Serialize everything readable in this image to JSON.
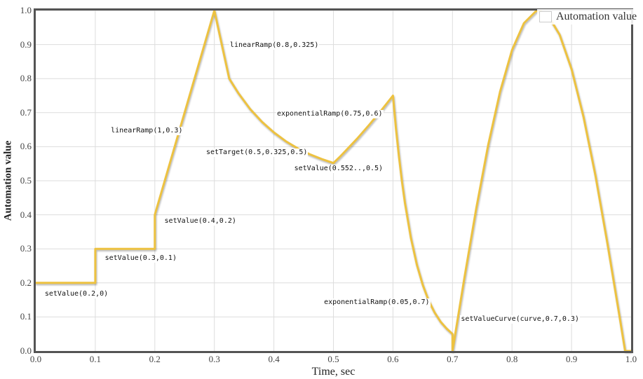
{
  "chart_data": {
    "type": "line",
    "title": "",
    "xlabel": "Time, sec",
    "ylabel": "Automation value",
    "xlim": [
      0,
      1
    ],
    "ylim": [
      0,
      1
    ],
    "grid": true,
    "x_ticks": [
      "0.0",
      "0.1",
      "0.2",
      "0.3",
      "0.4",
      "0.5",
      "0.6",
      "0.7",
      "0.8",
      "0.9",
      "1.0"
    ],
    "y_ticks": [
      "0.0",
      "0.1",
      "0.2",
      "0.3",
      "0.4",
      "0.5",
      "0.6",
      "0.7",
      "0.8",
      "0.9",
      "1.0"
    ],
    "legend": {
      "position": "top-right",
      "entries": [
        {
          "label": "Automation value",
          "color": "#edc240"
        }
      ]
    },
    "series": [
      {
        "name": "Automation value",
        "color": "#edc240",
        "points": [
          [
            0,
            0.2
          ],
          [
            0.1,
            0.2
          ],
          [
            0.1,
            0.3
          ],
          [
            0.2,
            0.3
          ],
          [
            0.2,
            0.4
          ],
          [
            0.3,
            1
          ],
          [
            0.325,
            0.8
          ],
          [
            0.34,
            0.758
          ],
          [
            0.36,
            0.711
          ],
          [
            0.38,
            0.673
          ],
          [
            0.4,
            0.642
          ],
          [
            0.42,
            0.616
          ],
          [
            0.44,
            0.595
          ],
          [
            0.46,
            0.578
          ],
          [
            0.48,
            0.564
          ],
          [
            0.5,
            0.552
          ],
          [
            0.51,
            0.569
          ],
          [
            0.52,
            0.587
          ],
          [
            0.54,
            0.624
          ],
          [
            0.56,
            0.664
          ],
          [
            0.58,
            0.706
          ],
          [
            0.6,
            0.75
          ],
          [
            0.605,
            0.655
          ],
          [
            0.61,
            0.572
          ],
          [
            0.615,
            0.5
          ],
          [
            0.62,
            0.436
          ],
          [
            0.63,
            0.333
          ],
          [
            0.64,
            0.254
          ],
          [
            0.65,
            0.194
          ],
          [
            0.66,
            0.148
          ],
          [
            0.67,
            0.113
          ],
          [
            0.68,
            0.086
          ],
          [
            0.69,
            0.066
          ],
          [
            0.7,
            0.05
          ],
          [
            0.7,
            0
          ],
          [
            0.72,
            0.215
          ],
          [
            0.74,
            0.42
          ],
          [
            0.76,
            0.605
          ],
          [
            0.78,
            0.762
          ],
          [
            0.8,
            0.884
          ],
          [
            0.82,
            0.963
          ],
          [
            0.84,
            0.998
          ],
          [
            0.845,
            1
          ],
          [
            0.86,
            0.987
          ],
          [
            0.88,
            0.929
          ],
          [
            0.9,
            0.828
          ],
          [
            0.92,
            0.688
          ],
          [
            0.94,
            0.516
          ],
          [
            0.96,
            0.319
          ],
          [
            0.98,
            0.108
          ],
          [
            0.99,
            0
          ],
          [
            1,
            0
          ]
        ]
      }
    ],
    "annotations": [
      {
        "text": "setValue(0.2,0)",
        "t": 0.014,
        "v": 0.167
      },
      {
        "text": "setValue(0.3,0.1)",
        "t": 0.115,
        "v": 0.272
      },
      {
        "text": "setValue(0.4,0.2)",
        "t": 0.215,
        "v": 0.381
      },
      {
        "text": "linearRamp(1,0.3)",
        "t": 0.125,
        "v": 0.646
      },
      {
        "text": "linearRamp(0.8,0.325)",
        "t": 0.325,
        "v": 0.897
      },
      {
        "text": "setTarget(0.5,0.325,0.5)",
        "t": 0.285,
        "v": 0.582
      },
      {
        "text": "exponentialRamp(0.75,0.6)",
        "t": 0.404,
        "v": 0.695
      },
      {
        "text": "setValue(0.552..,0.5)",
        "t": 0.433,
        "v": 0.535
      },
      {
        "text": "exponentialRamp(0.05,0.7)",
        "t": 0.483,
        "v": 0.142
      },
      {
        "text": "setValueCurve(curve,0.7,0.3)",
        "t": 0.713,
        "v": 0.093
      }
    ]
  },
  "colors": {
    "line": "#edc240",
    "grid": "#dddddd",
    "border": "#545454",
    "tick_text": "#444444",
    "annotation_text": "#111111",
    "legend_border": "#cccccc"
  }
}
